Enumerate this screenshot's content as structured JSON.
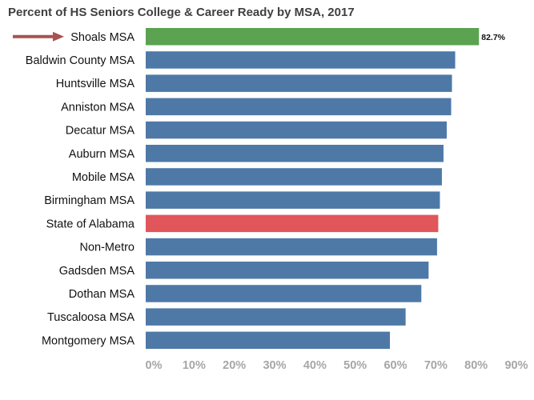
{
  "chart_data": {
    "type": "bar",
    "orientation": "horizontal",
    "title": "Percent of HS Seniors College & Career Ready by MSA, 2017",
    "categories": [
      "Shoals MSA",
      "Baldwin County MSA",
      "Huntsville MSA",
      "Anniston MSA",
      "Decatur MSA",
      "Auburn MSA",
      "Mobile MSA",
      "Birmingham MSA",
      "State of Alabama",
      "Non-Metro",
      "Gadsden MSA",
      "Dothan MSA",
      "Tuscaloosa MSA",
      "Montgomery MSA"
    ],
    "values": [
      82.7,
      76.8,
      76.0,
      75.8,
      74.7,
      73.9,
      73.5,
      73.0,
      72.6,
      72.3,
      70.2,
      68.4,
      64.5,
      60.6
    ],
    "bar_colors": [
      "#5ba251",
      "#4e79a7",
      "#4e79a7",
      "#4e79a7",
      "#4e79a7",
      "#4e79a7",
      "#4e79a7",
      "#4e79a7",
      "#e0565b",
      "#4e79a7",
      "#4e79a7",
      "#4e79a7",
      "#4e79a7",
      "#4e79a7"
    ],
    "data_labels": [
      "82.7%",
      "",
      "",
      "",
      "",
      "",
      "",
      "",
      "",
      "",
      "",
      "",
      "",
      ""
    ],
    "highlight_arrow_color": "#a85251",
    "xlim": [
      0,
      90
    ],
    "xticks": [
      "0%",
      "10%",
      "20%",
      "30%",
      "40%",
      "50%",
      "60%",
      "70%",
      "80%",
      "90%"
    ],
    "xlabel": "",
    "ylabel": "",
    "grid": false,
    "legend": "none"
  }
}
